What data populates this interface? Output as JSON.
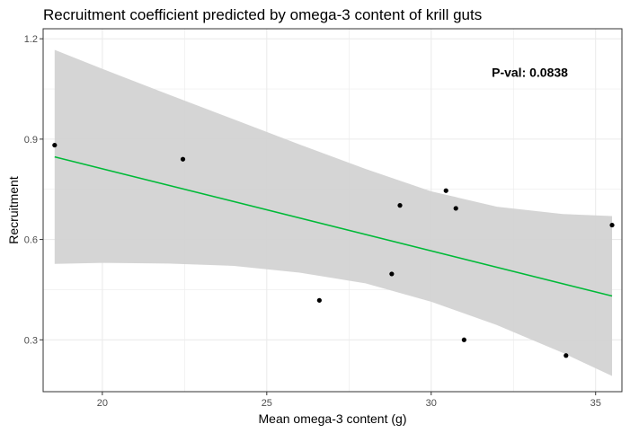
{
  "chart_data": {
    "type": "scatter",
    "title": "Recruitment coefficient predicted by omega-3 content of krill guts",
    "xlabel": "Mean omega-3 content (g)",
    "ylabel": "Recruitment",
    "xlim": [
      18.2,
      35.8
    ],
    "ylim": [
      0.145,
      1.23
    ],
    "x_ticks": [
      20,
      25,
      30,
      35
    ],
    "x_tick_labels": [
      "20",
      "25",
      "30",
      "35"
    ],
    "y_ticks": [
      0.3,
      0.6,
      0.9,
      1.2
    ],
    "y_tick_labels": [
      "0.3",
      "0.6",
      "0.9",
      "1.2"
    ],
    "grid": true,
    "points": [
      {
        "x": 18.55,
        "y": 0.882
      },
      {
        "x": 22.45,
        "y": 0.84
      },
      {
        "x": 26.6,
        "y": 0.418
      },
      {
        "x": 28.8,
        "y": 0.497
      },
      {
        "x": 29.05,
        "y": 0.702
      },
      {
        "x": 30.45,
        "y": 0.746
      },
      {
        "x": 30.75,
        "y": 0.693
      },
      {
        "x": 31.0,
        "y": 0.3
      },
      {
        "x": 34.1,
        "y": 0.253
      },
      {
        "x": 35.5,
        "y": 0.643
      }
    ],
    "fit_line": {
      "x": [
        18.55,
        35.5
      ],
      "y": [
        0.847,
        0.431
      ]
    },
    "confidence_band": {
      "x": [
        18.55,
        20,
        22,
        24,
        26,
        28,
        30,
        32,
        34,
        35.5
      ],
      "upper": [
        1.167,
        1.11,
        1.034,
        0.959,
        0.884,
        0.811,
        0.744,
        0.698,
        0.676,
        0.67
      ],
      "lower": [
        0.527,
        0.53,
        0.528,
        0.521,
        0.501,
        0.469,
        0.414,
        0.344,
        0.261,
        0.192
      ]
    },
    "annotation": {
      "text": "P-val:  0.0838",
      "x": 33,
      "y": 1.1
    },
    "colors": {
      "line": "#00ba38",
      "band": "#d3d3d3",
      "point": "#000000",
      "grid": "#ebebeb",
      "border": "#333333"
    }
  }
}
